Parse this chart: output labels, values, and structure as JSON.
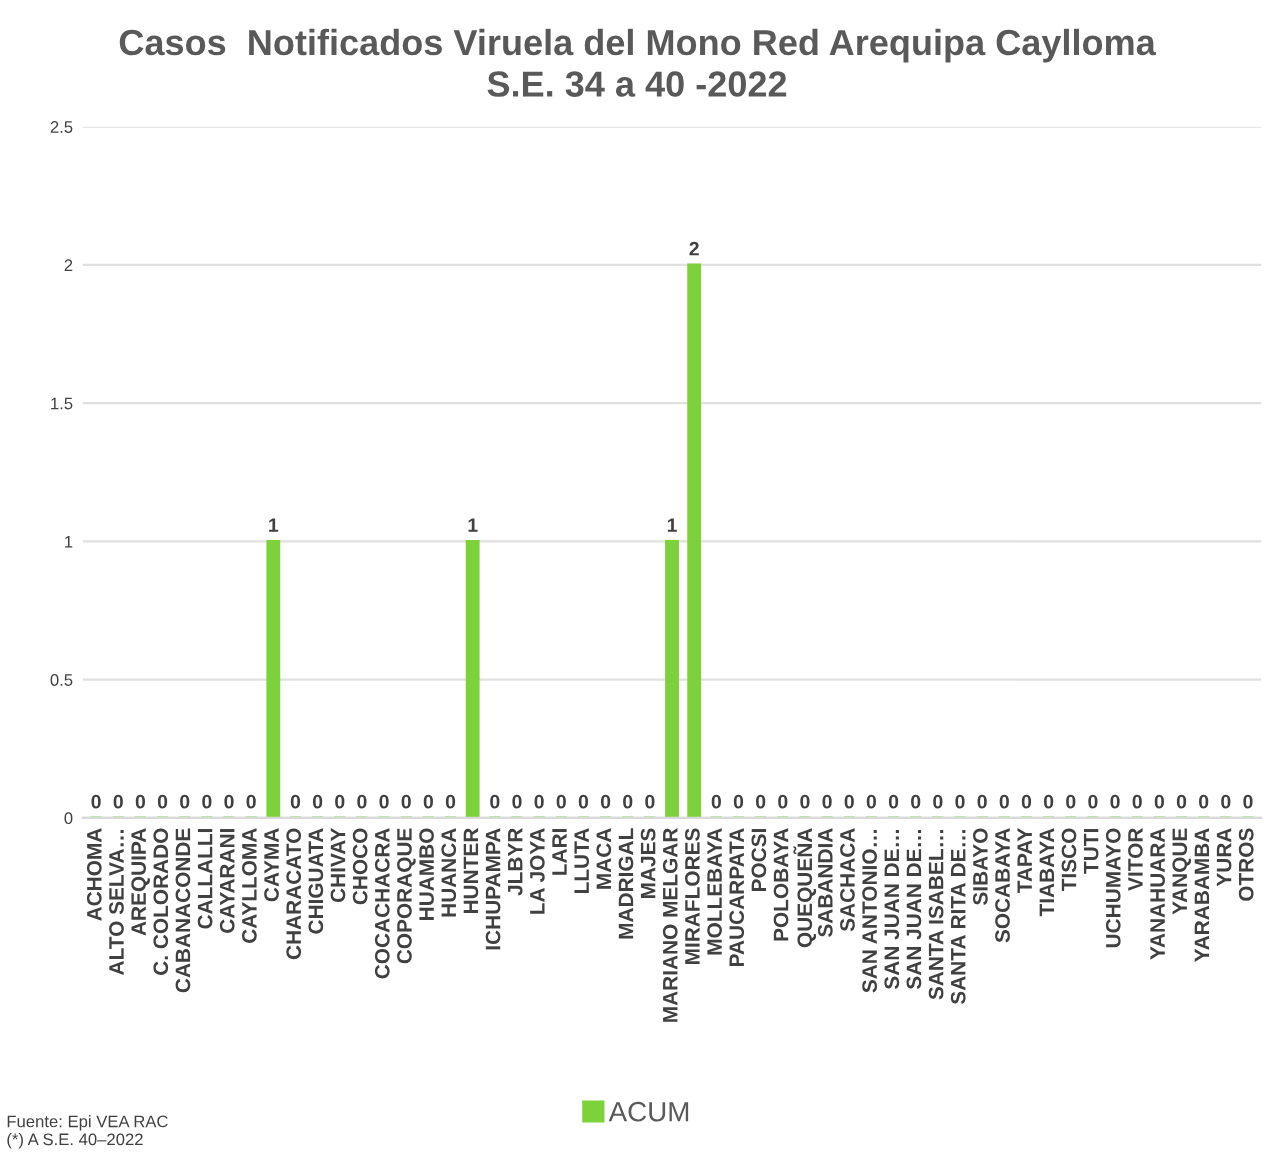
{
  "chart_data": {
    "type": "bar",
    "title": "Casos  Notificados Viruela del Mono Red Arequipa Caylloma\nS.E. 34 a 40 -2022",
    "categories": [
      "ACHOMA",
      "ALTO SELVA…",
      "AREQUIPA",
      "C. COLORADO",
      "CABANACONDE",
      "CALLALLI",
      "CAYARANI",
      "CAYLLOMA",
      "CAYMA",
      "CHARACATO",
      "CHIGUATA",
      "CHIVAY",
      "CHOCO",
      "COCACHACRA",
      "COPORAQUE",
      "HUAMBO",
      "HUANCA",
      "HUNTER",
      "ICHUPAMPA",
      "JLBYR",
      "LA JOYA",
      "LARI",
      "LLUTA",
      "MACA",
      "MADRIGAL",
      "MAJES",
      "MARIANO MELGAR",
      "MIRAFLORES",
      "MOLLEBAYA",
      "PAUCARPATA",
      "POCSI",
      "POLOBAYA",
      "QUEQUEÑA",
      "SABANDIA",
      "SACHACA",
      "SAN ANTONIO…",
      "SAN JUAN DE…",
      "SAN JUAN DE…",
      "SANTA ISABEL…",
      "SANTA RITA DE…",
      "SIBAYO",
      "SOCABAYA",
      "TAPAY",
      "TIABAYA",
      "TISCO",
      "TUTI",
      "UCHUMAYO",
      "VITOR",
      "YANAHUARA",
      "YANQUE",
      "YARABAMBA",
      "YURA",
      "OTROS"
    ],
    "series": [
      {
        "name": "ACUM",
        "color": "#7dd13a",
        "values": [
          0,
          0,
          0,
          0,
          0,
          0,
          0,
          0,
          1,
          0,
          0,
          0,
          0,
          0,
          0,
          0,
          0,
          1,
          0,
          0,
          0,
          0,
          0,
          0,
          0,
          0,
          1,
          2,
          0,
          0,
          0,
          0,
          0,
          0,
          0,
          0,
          0,
          0,
          0,
          0,
          0,
          0,
          0,
          0,
          0,
          0,
          0,
          0,
          0,
          0,
          0,
          0,
          0
        ]
      }
    ],
    "ylim": [
      0,
      2.5
    ],
    "yticks": [
      0,
      0.5,
      1,
      1.5,
      2,
      2.5
    ],
    "grid": "y",
    "data_labels": true,
    "legend": "bottom",
    "annotations": [
      "Fuente: Epi VEA RAC\n(*) A S.E. 40–2022"
    ]
  }
}
